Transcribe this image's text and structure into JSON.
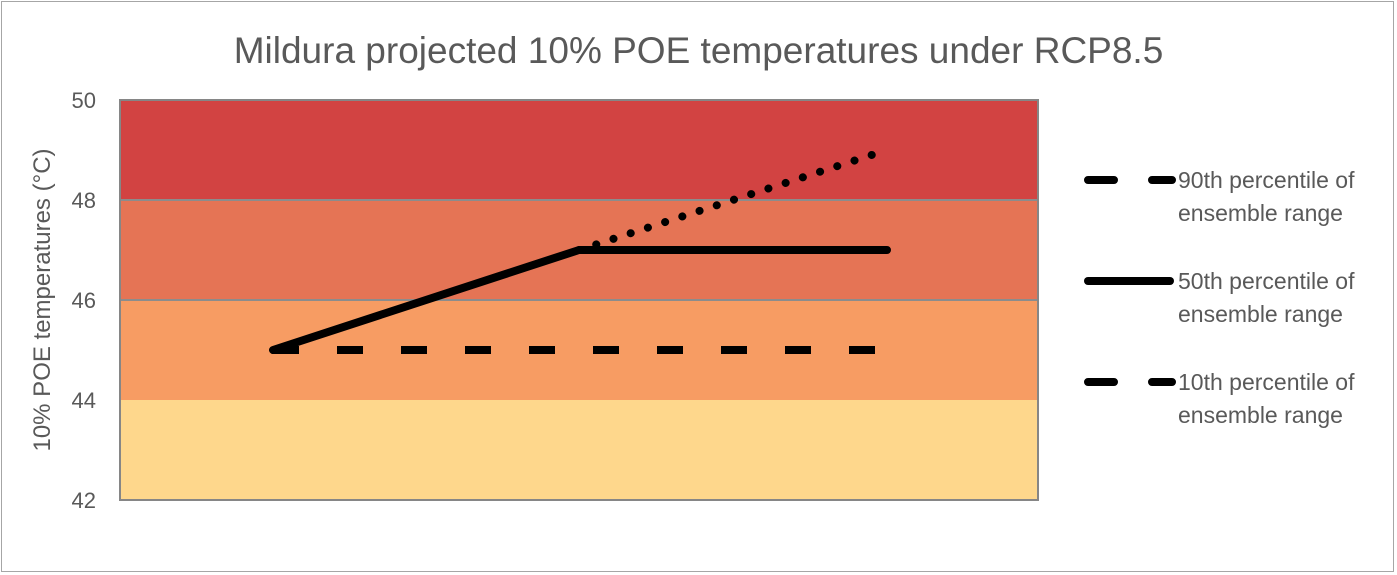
{
  "chart_data": {
    "type": "line",
    "title": "Mildura projected 10% POE temperatures under RCP8.5",
    "xlabel": "",
    "ylabel": "10% POE temperatures (°C)",
    "ylim": [
      42,
      50
    ],
    "yticks": [
      42,
      44,
      46,
      48,
      50
    ],
    "x": [
      0,
      1,
      2
    ],
    "bands": [
      {
        "from": 42,
        "to": 44,
        "color": "#fed78c"
      },
      {
        "from": 44,
        "to": 46,
        "color": "#f79c63"
      },
      {
        "from": 46,
        "to": 48,
        "color": "#e57455"
      },
      {
        "from": 48,
        "to": 50,
        "color": "#d24342"
      }
    ],
    "series": [
      {
        "name": "90th percentile of ensemble range",
        "legend_lines": [
          "90th percentile of",
          "ensemble range"
        ],
        "style": "dotted",
        "values": [
          null,
          47,
          49
        ]
      },
      {
        "name": "50th percentile of ensemble range",
        "legend_lines": [
          "50th percentile of",
          "ensemble range"
        ],
        "style": "solid",
        "values": [
          45,
          47,
          47
        ]
      },
      {
        "name": "10th percentile of ensemble range",
        "legend_lines": [
          "10th percentile of",
          "ensemble range"
        ],
        "style": "dashed",
        "values": [
          45,
          45,
          45
        ]
      }
    ],
    "line_color": "#000000",
    "legend_position": "right",
    "grid": true
  }
}
